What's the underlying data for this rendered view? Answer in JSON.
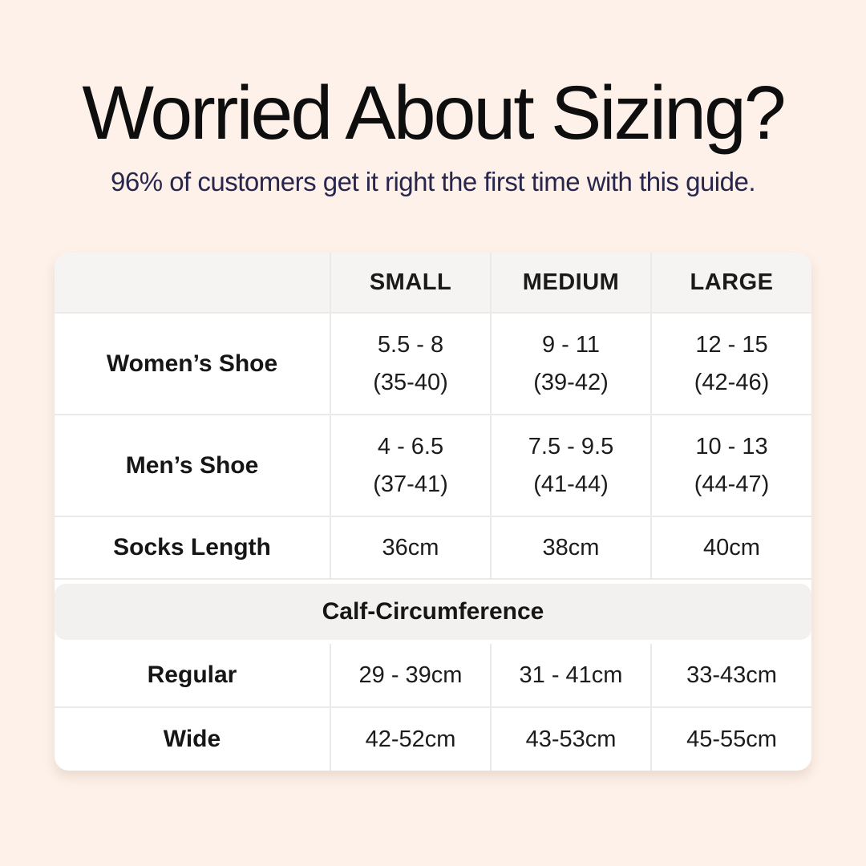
{
  "page": {
    "background_color": "#fdf1e9",
    "title": "Worried About Sizing?",
    "subtitle": "96% of customers get it right the first time with this guide.",
    "title_color": "#0e0e0e",
    "subtitle_color": "#29264d"
  },
  "table": {
    "header_bg": "#f5f4f2",
    "section_band_bg": "#f2f1ef",
    "divider_color": "#ebeae9",
    "columns": [
      "",
      "SMALL",
      "MEDIUM",
      "LARGE"
    ],
    "rows": [
      {
        "label": "Women’s Shoe",
        "cells": [
          [
            "5.5 - 8",
            "(35-40)"
          ],
          [
            "9 - 11",
            "(39-42)"
          ],
          [
            "12 - 15",
            "(42-46)"
          ]
        ]
      },
      {
        "label": "Men’s Shoe",
        "cells": [
          [
            "4 - 6.5",
            "(37-41)"
          ],
          [
            "7.5 - 9.5",
            "(41-44)"
          ],
          [
            "10 - 13",
            "(44-47)"
          ]
        ]
      },
      {
        "label": "Socks Length",
        "cells": [
          [
            "36cm"
          ],
          [
            "38cm"
          ],
          [
            "40cm"
          ]
        ]
      }
    ],
    "section_header": "Calf-Circumference",
    "section_rows": [
      {
        "label": "Regular",
        "cells": [
          [
            "29 - 39cm"
          ],
          [
            "31 - 41cm"
          ],
          [
            "33-43cm"
          ]
        ]
      },
      {
        "label": "Wide",
        "cells": [
          [
            "42-52cm"
          ],
          [
            "43-53cm"
          ],
          [
            "45-55cm"
          ]
        ]
      }
    ]
  },
  "chart_data": {
    "type": "table",
    "title": "Worried About Sizing?",
    "subtitle": "96% of customers get it right the first time with this guide.",
    "columns": [
      "",
      "SMALL",
      "MEDIUM",
      "LARGE"
    ],
    "rows": [
      [
        "Women’s Shoe",
        "5.5 - 8 (35-40)",
        "9 - 11 (39-42)",
        "12 - 15 (42-46)"
      ],
      [
        "Men’s Shoe",
        "4 - 6.5 (37-41)",
        "7.5 - 9.5 (41-44)",
        "10 - 13 (44-47)"
      ],
      [
        "Socks Length",
        "36cm",
        "38cm",
        "40cm"
      ],
      [
        "Calf-Circumference",
        "",
        "",
        ""
      ],
      [
        "Regular",
        "29 - 39cm",
        "31 - 41cm",
        "33-43cm"
      ],
      [
        "Wide",
        "42-52cm",
        "43-53cm",
        "45-55cm"
      ]
    ],
    "layout_hints": {
      "section_header_row_index": 3,
      "two_line_cells": true,
      "grid": "light-gray dividers, rounded white card on peach background"
    }
  }
}
